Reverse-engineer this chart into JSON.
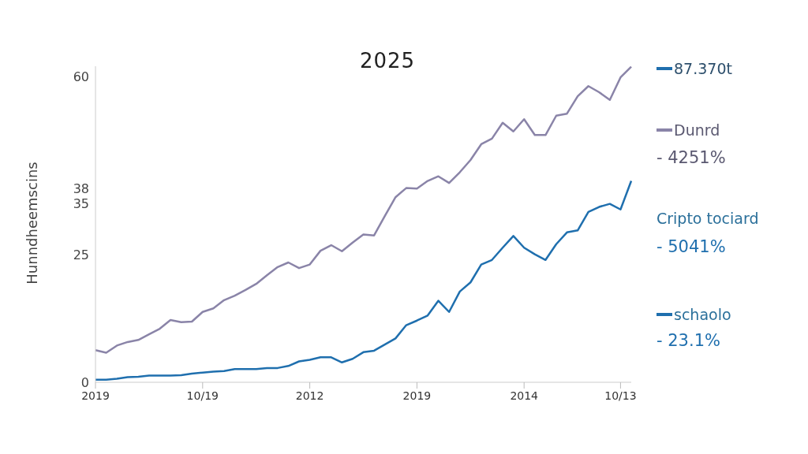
{
  "chart_data": {
    "type": "line",
    "title": "2025",
    "ylabel": "Hunndheemscins",
    "categories": [
      "2019",
      null,
      null,
      null,
      null,
      null,
      null,
      null,
      null,
      null,
      "10/19",
      null,
      null,
      null,
      null,
      null,
      null,
      null,
      null,
      null,
      "2012",
      null,
      null,
      null,
      null,
      null,
      null,
      null,
      null,
      null,
      "2019",
      null,
      null,
      null,
      null,
      null,
      null,
      null,
      null,
      null,
      "2014",
      null,
      null,
      null,
      null,
      null,
      null,
      null,
      null,
      "10/13",
      null
    ],
    "series": [
      {
        "name": "Dunrd",
        "color": "#8a84a8",
        "values": [
          6.3,
          5.8,
          7.2,
          7.9,
          8.3,
          9.4,
          10.5,
          12.2,
          11.8,
          11.9,
          13.8,
          14.5,
          16.1,
          17.0,
          18.1,
          19.3,
          21.0,
          22.6,
          23.5,
          22.4,
          23.1,
          25.8,
          26.9,
          25.7,
          27.4,
          29.0,
          28.8,
          32.6,
          36.3,
          38.1,
          38.0,
          39.5,
          40.4,
          39.1,
          41.2,
          43.6,
          46.7,
          47.8,
          50.9,
          49.2,
          51.6,
          48.5,
          48.5,
          52.3,
          52.7,
          56.1,
          58.1,
          56.9,
          55.4,
          59.8,
          61.9
        ]
      },
      {
        "name": "schaolo",
        "color": "#1f6fae",
        "values": [
          0.5,
          0.5,
          0.7,
          1.0,
          1.1,
          1.3,
          1.3,
          1.3,
          1.4,
          1.7,
          1.9,
          2.1,
          2.2,
          2.6,
          2.6,
          2.6,
          2.8,
          2.8,
          3.2,
          4.1,
          4.4,
          4.9,
          4.9,
          3.9,
          4.6,
          5.9,
          6.2,
          7.4,
          8.6,
          11.2,
          12.1,
          13.1,
          16.0,
          13.8,
          17.8,
          19.6,
          23.1,
          24.0,
          26.4,
          28.7,
          26.4,
          25.1,
          24.0,
          27.1,
          29.4,
          29.8,
          33.4,
          34.4,
          35.0,
          33.9,
          39.5
        ]
      }
    ],
    "ylim": [
      0,
      62
    ],
    "yticks": [
      0,
      25,
      35,
      38,
      60
    ],
    "annotations": [
      "87.370t",
      "- 4251%",
      "Cripto tociard",
      "- 5041%",
      "- 23.1%"
    ],
    "legend": "right",
    "marker": "none",
    "line_style": "solid"
  }
}
